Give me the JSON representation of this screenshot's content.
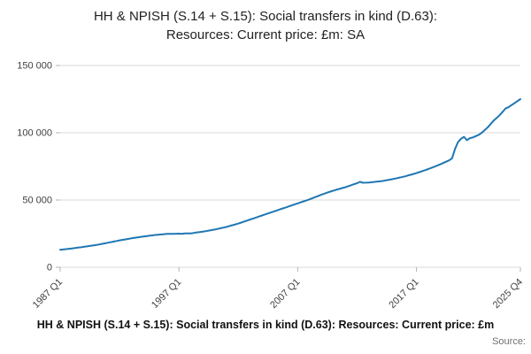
{
  "page": {
    "title_line1": "HH & NPISH (S.14 + S.15): Social transfers in kind (D.63):",
    "title_line2": "Resources: Current price: £m: SA",
    "footer_caption": "HH & NPISH (S.14 + S.15): Social transfers in kind (D.63): Resources: Current price: £m",
    "source_label": "Source:"
  },
  "colors": {
    "line": "#1f77b4",
    "grid": "#d9d9d9",
    "axis": "#b3b3b3",
    "tick_text": "#414042"
  },
  "chart_data": {
    "type": "line",
    "title": "HH & NPISH (S.14 + S.15): Social transfers in kind (D.63): Resources: Current price: £m: SA",
    "xlabel": "",
    "ylabel": "",
    "frequency": "quarterly",
    "x_start": "1987 Q1",
    "x_end": "2025 Q4",
    "x_tick_labels": [
      "1987 Q1",
      "1997 Q1",
      "2007 Q1",
      "2017 Q1",
      "2025 Q4"
    ],
    "x_tick_indices": [
      0,
      40,
      80,
      120,
      155
    ],
    "y_ticks": [
      0,
      50000,
      100000,
      150000
    ],
    "y_tick_labels": [
      "0",
      "50 000",
      "100 000",
      "150 000"
    ],
    "ylim": [
      0,
      150000
    ],
    "grid": "horizontal",
    "legend": "none",
    "series": [
      {
        "name": "HH & NPISH (S.14 + S.15): Social transfers in kind (D.63): Resources: Current price: £m",
        "values": [
          13000,
          13250,
          13500,
          13750,
          14000,
          14300,
          14600,
          14900,
          15200,
          15525,
          15850,
          16175,
          16500,
          16925,
          17350,
          17775,
          18200,
          18650,
          19100,
          19550,
          20000,
          20375,
          20750,
          21125,
          21500,
          21825,
          22150,
          22475,
          22800,
          23100,
          23400,
          23700,
          24000,
          24200,
          24400,
          24600,
          24800,
          24850,
          24900,
          24950,
          25000,
          24900,
          25100,
          25150,
          25200,
          25500,
          25900,
          26200,
          26500,
          26875,
          27250,
          27625,
          28000,
          28500,
          29000,
          29500,
          30000,
          30625,
          31250,
          31875,
          32500,
          33250,
          34000,
          34750,
          35500,
          36250,
          37000,
          37750,
          38500,
          39250,
          40000,
          40750,
          41500,
          42250,
          43000,
          43750,
          44500,
          45250,
          46000,
          46750,
          47500,
          48250,
          49000,
          49750,
          50500,
          51375,
          52250,
          53125,
          54000,
          54750,
          55500,
          56250,
          57000,
          57625,
          58250,
          58875,
          59500,
          60250,
          61000,
          61750,
          62500,
          63500,
          62800,
          62900,
          63000,
          63250,
          63500,
          63750,
          64000,
          64375,
          64750,
          65125,
          65500,
          66000,
          66500,
          67000,
          67500,
          68125,
          68750,
          69375,
          70000,
          70750,
          71500,
          72250,
          73000,
          73875,
          74750,
          75625,
          76500,
          77500,
          78500,
          79500,
          81000,
          88000,
          93000,
          95500,
          97000,
          94500,
          96000,
          96500,
          97500,
          98500,
          100000,
          102000,
          104000,
          106500,
          109000,
          111000,
          113000,
          115500,
          118000,
          119000,
          120500,
          122000,
          123500,
          125000
        ]
      }
    ]
  }
}
